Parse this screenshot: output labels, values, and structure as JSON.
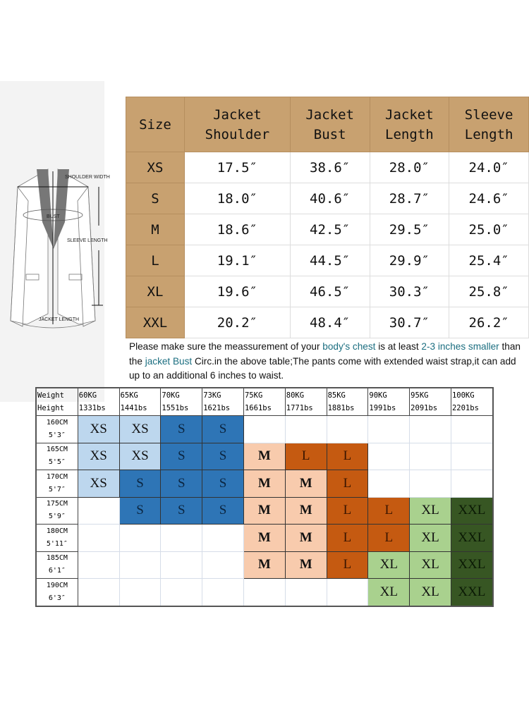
{
  "diagram": {
    "labels": {
      "shoulder": "SHOULDER WIDTH",
      "bust": "BUST",
      "sleeve": "SLEEVE LENGTH",
      "length": "JACKET LENGTH"
    }
  },
  "size_table": {
    "headers": [
      [
        "Size"
      ],
      [
        "Jacket",
        "Shoulder"
      ],
      [
        "Jacket",
        "Bust"
      ],
      [
        "Jacket",
        "Length"
      ],
      [
        "Sleeve",
        "Length"
      ]
    ],
    "rows": [
      [
        "XS",
        "17.5″",
        "38.6″",
        "28.0″",
        "24.0″"
      ],
      [
        "S",
        "18.0″",
        "40.6″",
        "28.7″",
        "24.6″"
      ],
      [
        "M",
        "18.6″",
        "42.5″",
        "29.5″",
        "25.0″"
      ],
      [
        "L",
        "19.1″",
        "44.5″",
        "29.9″",
        "25.4″"
      ],
      [
        "XL",
        "19.6″",
        "46.5″",
        "30.3″",
        "25.8″"
      ],
      [
        "XXL",
        "20.2″",
        "48.4″",
        "30.7″",
        "26.2″"
      ]
    ],
    "header_color": "#c8a170"
  },
  "note": {
    "p1": "Please make sure the meassurement of your ",
    "h1": "body's chest",
    "p2": " is at least ",
    "h2": "2-3 inches smaller",
    "p3": " than the ",
    "h3": "jacket Bust",
    "p4": " Circ.in the above table;The pants come with extended waist strap,it can add up to an additional 6 inches to waist.",
    "highlight_color": "#1b6e80"
  },
  "fit_grid": {
    "corner": [
      "Weight",
      "Height"
    ],
    "weights": [
      [
        "60KG",
        "1331bs"
      ],
      [
        "65KG",
        "1441bs"
      ],
      [
        "70KG",
        "1551bs"
      ],
      [
        "73KG",
        "1621bs"
      ],
      [
        "75KG",
        "1661bs"
      ],
      [
        "80KG",
        "1771bs"
      ],
      [
        "85KG",
        "1881bs"
      ],
      [
        "90KG",
        "1991bs"
      ],
      [
        "95KG",
        "2091bs"
      ],
      [
        "100KG",
        "2201bs"
      ]
    ],
    "heights": [
      [
        "160CM",
        "5'3″"
      ],
      [
        "165CM",
        "5'5″"
      ],
      [
        "170CM",
        "5'7″"
      ],
      [
        "175CM",
        "5'9″"
      ],
      [
        "180CM",
        "5'11″"
      ],
      [
        "185CM",
        "6'1″"
      ],
      [
        "190CM",
        "6'3″"
      ]
    ],
    "cells": [
      [
        "XS",
        "XS",
        "S",
        "S",
        "",
        "",
        "",
        "",
        "",
        ""
      ],
      [
        "XS",
        "XS",
        "S",
        "S",
        "M",
        "L",
        "L",
        "",
        "",
        ""
      ],
      [
        "XS",
        "S",
        "S",
        "S",
        "M",
        "M",
        "L",
        "",
        "",
        ""
      ],
      [
        "",
        "S",
        "S",
        "S",
        "M",
        "M",
        "L",
        "L",
        "XL",
        "XXL"
      ],
      [
        "",
        "",
        "",
        "",
        "M",
        "M",
        "L",
        "L",
        "XL",
        "XXL"
      ],
      [
        "",
        "",
        "",
        "",
        "M",
        "M",
        "L",
        "XL",
        "XL",
        "XXL"
      ],
      [
        "",
        "",
        "",
        "",
        "",
        "",
        "",
        "XL",
        "XL",
        "XXL"
      ]
    ],
    "size_colors": {
      "XS": "#bdd7ee",
      "S": "#2e75b6",
      "M": "#f8cbad",
      "L": "#c55a11",
      "XL": "#a9d18e",
      "XXL": "#375623"
    }
  }
}
